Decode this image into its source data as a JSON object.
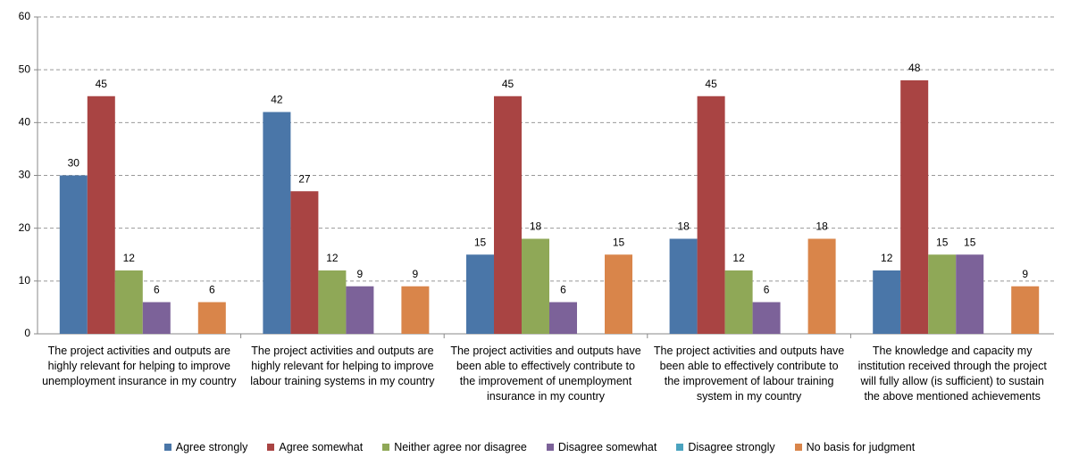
{
  "chart_data": {
    "type": "bar",
    "categories": [
      "The project activities and outputs are highly relevant for helping to improve unemployment insurance in my country",
      "The project activities and outputs are highly relevant for helping to improve labour training systems in my country",
      "The project activities and outputs have been able to effectively contribute to the improvement of unemployment insurance in my country",
      "The project activities and outputs have been able to effectively contribute to the improvement of labour training system in my country",
      "The knowledge and capacity my institution received through the project will fully allow (is sufficient) to sustain the above mentioned achievements"
    ],
    "series": [
      {
        "name": "Agree strongly",
        "color": "#4a76a8",
        "values": [
          30,
          42,
          15,
          18,
          12
        ]
      },
      {
        "name": "Agree somewhat",
        "color": "#a94443",
        "values": [
          45,
          27,
          45,
          45,
          48
        ]
      },
      {
        "name": "Neither agree nor disagree",
        "color": "#8fa857",
        "values": [
          12,
          12,
          18,
          12,
          15
        ]
      },
      {
        "name": "Disagree somewhat",
        "color": "#7c6299",
        "values": [
          6,
          9,
          6,
          6,
          15
        ]
      },
      {
        "name": "Disagree strongly",
        "color": "#4aa3bf",
        "values": [
          null,
          null,
          null,
          null,
          null
        ]
      },
      {
        "name": "No basis for judgment",
        "color": "#d9854a",
        "values": [
          6,
          9,
          15,
          18,
          9
        ]
      }
    ],
    "ylim": [
      0,
      60
    ],
    "yticks": [
      0,
      10,
      20,
      30,
      40,
      50,
      60
    ],
    "grid": true,
    "legend": "bottom"
  }
}
